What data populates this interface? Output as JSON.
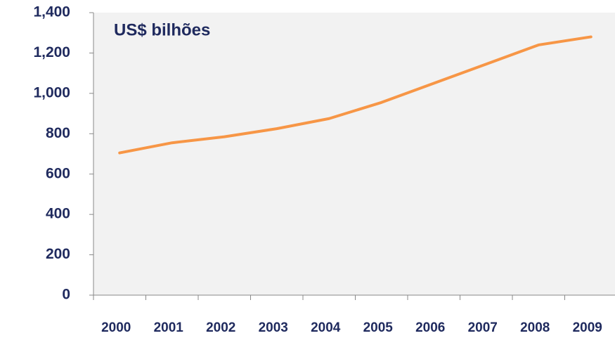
{
  "chart_data": {
    "type": "line",
    "title": "US$ bilhões",
    "categories": [
      "2000",
      "2001",
      "2002",
      "2003",
      "2004",
      "2005",
      "2006",
      "2007",
      "2008",
      "2009"
    ],
    "series": [
      {
        "name": "US$ bilhões",
        "color": "#f79646",
        "values": [
          705,
          755,
          785,
          825,
          875,
          955,
          1050,
          1145,
          1240,
          1280
        ]
      }
    ],
    "ylim": [
      0,
      1400
    ],
    "yticks": [
      0,
      200,
      400,
      600,
      800,
      {
        "value": 1000,
        "label": "1,000"
      },
      {
        "value": 1200,
        "label": "1,200"
      },
      {
        "value": 1400,
        "label": "1,400"
      }
    ],
    "grid": false
  }
}
